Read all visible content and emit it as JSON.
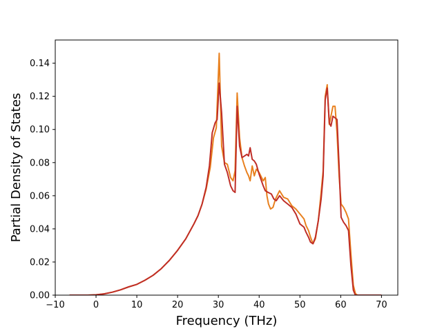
{
  "chart_data": {
    "type": "line",
    "title": "",
    "xlabel": "Frequency (THz)",
    "ylabel": "Partial Density of States",
    "xlim": [
      -10,
      74
    ],
    "ylim": [
      0,
      0.154
    ],
    "xticks": [
      -10,
      0,
      10,
      20,
      30,
      40,
      50,
      60,
      70
    ],
    "xtick_labels": [
      "−10",
      "0",
      "10",
      "20",
      "30",
      "40",
      "50",
      "60",
      "70"
    ],
    "yticks": [
      0,
      0.02,
      0.04,
      0.06,
      0.08,
      0.1,
      0.12,
      0.14
    ],
    "ytick_labels": [
      "0.00",
      "0.02",
      "0.04",
      "0.06",
      "0.08",
      "0.10",
      "0.12",
      "0.14"
    ],
    "grid": false,
    "legend": "none",
    "series": [
      {
        "color": "#e8801e",
        "x": [
          -6.5,
          -2,
          0,
          2,
          4,
          6,
          8,
          10,
          12,
          14,
          16,
          18,
          20,
          22,
          24,
          25,
          26,
          27,
          28,
          28.8,
          29.5,
          30.2,
          30.8,
          31.5,
          32.2,
          33,
          33.6,
          34.1,
          34.6,
          35.2,
          35.8,
          36.4,
          37,
          37.4,
          37.8,
          38.3,
          38.8,
          39.3,
          40,
          41,
          41.5,
          41.9,
          42.3,
          42.8,
          43.4,
          44,
          45,
          46,
          47,
          48,
          49,
          50,
          51,
          51.5,
          52.1,
          52.6,
          53.2,
          53.8,
          54.5,
          55.2,
          55.7,
          56.2,
          56.7,
          57.2,
          57.6,
          58.1,
          58.6,
          59.1,
          59.6,
          60.1,
          60.7,
          61.3,
          61.9,
          62.5,
          63.1,
          63.6,
          64.1,
          64.6,
          66,
          70
        ],
        "y": [
          0,
          0,
          0.0002,
          0.0008,
          0.0018,
          0.0032,
          0.005,
          0.0065,
          0.009,
          0.012,
          0.016,
          0.021,
          0.027,
          0.034,
          0.043,
          0.048,
          0.055,
          0.064,
          0.077,
          0.095,
          0.101,
          0.146,
          0.09,
          0.08,
          0.079,
          0.071,
          0.069,
          0.075,
          0.122,
          0.095,
          0.083,
          0.078,
          0.074,
          0.072,
          0.069,
          0.078,
          0.072,
          0.076,
          0.074,
          0.069,
          0.071,
          0.06,
          0.055,
          0.052,
          0.053,
          0.058,
          0.063,
          0.059,
          0.058,
          0.054,
          0.052,
          0.049,
          0.046,
          0.042,
          0.039,
          0.035,
          0.031,
          0.034,
          0.045,
          0.062,
          0.075,
          0.12,
          0.127,
          0.103,
          0.108,
          0.114,
          0.114,
          0.098,
          0.072,
          0.055,
          0.053,
          0.05,
          0.046,
          0.025,
          0.006,
          0.001,
          0,
          0,
          0,
          0
        ]
      },
      {
        "color": "#bf2d26",
        "x": [
          -6.5,
          -2,
          0,
          2,
          4,
          6,
          8,
          10,
          12,
          14,
          16,
          18,
          20,
          22,
          24,
          25,
          26,
          27,
          27.8,
          28.5,
          29.2,
          29.7,
          30.2,
          30.8,
          31.5,
          32.2,
          33,
          33.6,
          34.1,
          34.6,
          35.2,
          35.8,
          36.4,
          37,
          37.4,
          37.8,
          38.3,
          38.8,
          39.3,
          40,
          41,
          41.5,
          42.2,
          43,
          43.6,
          44.2,
          45,
          46,
          47,
          48,
          49,
          50,
          51,
          51.5,
          52.1,
          52.6,
          53.2,
          53.8,
          54.5,
          55.2,
          55.7,
          56.2,
          56.7,
          57.2,
          57.6,
          58.1,
          58.6,
          59.1,
          59.6,
          60.1,
          60.7,
          61.3,
          61.9,
          62.5,
          63.1,
          63.6,
          64.1,
          64.6,
          66,
          70
        ],
        "y": [
          0,
          0,
          0.0002,
          0.0008,
          0.0018,
          0.0032,
          0.005,
          0.0065,
          0.009,
          0.012,
          0.016,
          0.021,
          0.027,
          0.034,
          0.043,
          0.048,
          0.055,
          0.065,
          0.078,
          0.098,
          0.104,
          0.106,
          0.128,
          0.11,
          0.079,
          0.074,
          0.066,
          0.063,
          0.062,
          0.114,
          0.09,
          0.083,
          0.084,
          0.085,
          0.084,
          0.089,
          0.082,
          0.081,
          0.079,
          0.073,
          0.066,
          0.063,
          0.062,
          0.061,
          0.058,
          0.057,
          0.06,
          0.057,
          0.055,
          0.053,
          0.049,
          0.043,
          0.041,
          0.038,
          0.035,
          0.032,
          0.031,
          0.035,
          0.045,
          0.058,
          0.072,
          0.118,
          0.125,
          0.104,
          0.102,
          0.108,
          0.107,
          0.106,
          0.078,
          0.047,
          0.044,
          0.042,
          0.039,
          0.018,
          0.003,
          0,
          0,
          0,
          0,
          0
        ]
      }
    ]
  }
}
